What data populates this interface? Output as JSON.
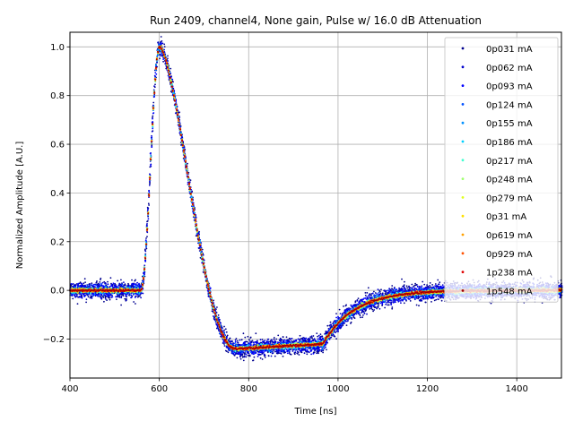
{
  "chart_data": {
    "type": "scatter",
    "title": "Run 2409, channel4, None gain, Pulse w/ 16.0 dB Attenuation",
    "xlabel": "Time [ns]",
    "ylabel": "Normalized Amplitude [A.U.]",
    "xlim": [
      400,
      1500
    ],
    "ylim": [
      -0.36,
      1.06
    ],
    "x_ticks": [
      400,
      600,
      800,
      1000,
      1200,
      1400
    ],
    "y_ticks": [
      -0.2,
      0.0,
      0.2,
      0.4,
      0.6,
      0.8,
      1.0
    ],
    "x_tick_labels": [
      "400",
      "600",
      "800",
      "1000",
      "1200",
      "1400"
    ],
    "y_tick_labels": [
      "−0.2",
      "0.0",
      "0.2",
      "0.4",
      "0.6",
      "0.8",
      "1.0"
    ],
    "grid": true,
    "legend_position": "top-right",
    "pulse_shape": {
      "baseline": 0.0,
      "rise_start_ns": 558,
      "peak_ns": 600,
      "peak_value": 1.0,
      "undershoot_value": -0.24,
      "recovery_start_ns": 965,
      "sample_step_ns": 2
    },
    "series": [
      {
        "name": "0p031 mA",
        "color": "#00008f",
        "noise": 0.03
      },
      {
        "name": "0p062 mA",
        "color": "#0000cc",
        "noise": 0.022
      },
      {
        "name": "0p093 mA",
        "color": "#0000ff",
        "noise": 0.018
      },
      {
        "name": "0p124 mA",
        "color": "#0050ff",
        "noise": 0.014
      },
      {
        "name": "0p155 mA",
        "color": "#0090ff",
        "noise": 0.011
      },
      {
        "name": "0p186 mA",
        "color": "#00d0ff",
        "noise": 0.009
      },
      {
        "name": "0p217 mA",
        "color": "#40ffd0",
        "noise": 0.008
      },
      {
        "name": "0p248 mA",
        "color": "#a0ff70",
        "noise": 0.007
      },
      {
        "name": "0p279 mA",
        "color": "#e0ff20",
        "noise": 0.006
      },
      {
        "name": "0p31 mA",
        "color": "#ffe000",
        "noise": 0.006
      },
      {
        "name": "0p619 mA",
        "color": "#ffa000",
        "noise": 0.005
      },
      {
        "name": "0p929 mA",
        "color": "#ff5000",
        "noise": 0.004
      },
      {
        "name": "1p238 mA",
        "color": "#e00000",
        "noise": 0.004
      },
      {
        "name": "1p548 mA",
        "color": "#a00000",
        "noise": 0.003
      }
    ]
  }
}
